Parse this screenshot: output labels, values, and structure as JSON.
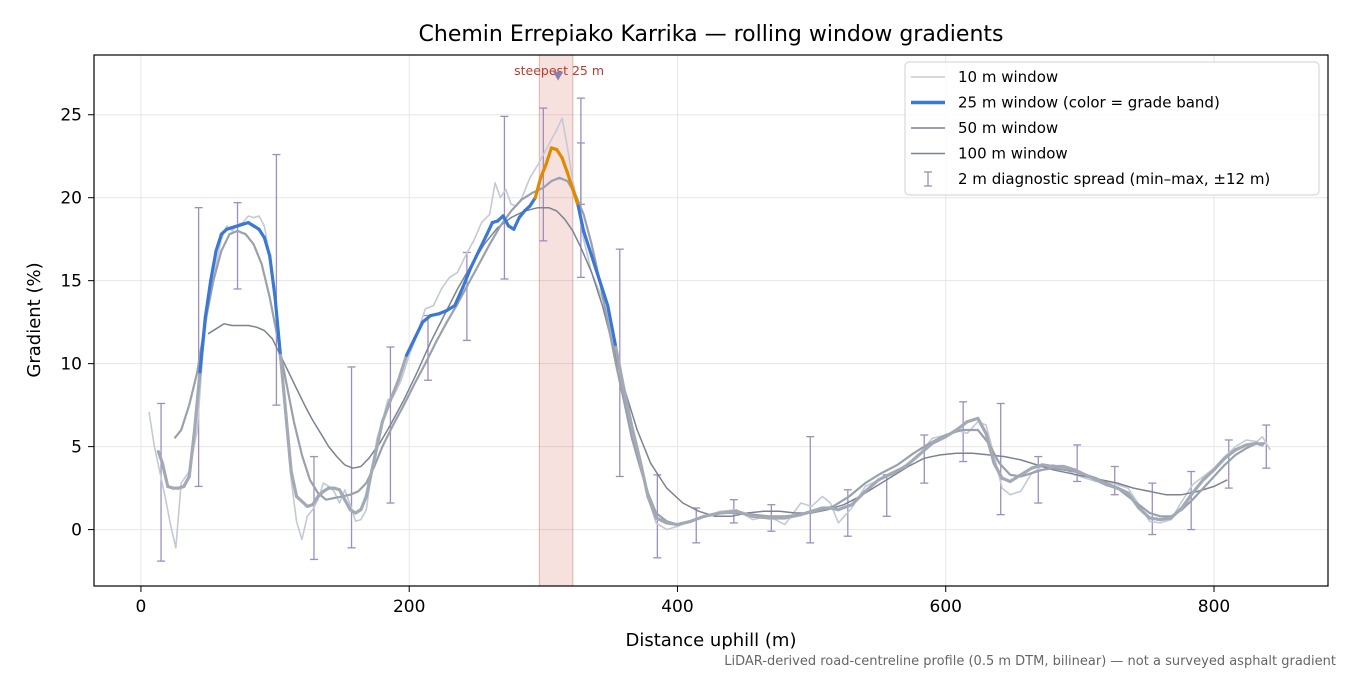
{
  "chart_data": {
    "type": "line",
    "title": "Chemin Errepiako Karrika — rolling window gradients",
    "xlabel": "Distance uphill (m)",
    "ylabel": "Gradient (%)",
    "xlim": [
      -35,
      885
    ],
    "ylim": [
      -3.4,
      28.6
    ],
    "xticks": [
      0,
      200,
      400,
      600,
      800
    ],
    "yticks": [
      0,
      5,
      10,
      15,
      20,
      25
    ],
    "grid": true,
    "legend_position": "top-right",
    "footnote": "LiDAR-derived road-centreline profile (0.5 m DTM, bilinear) — not a surveyed asphalt gradient",
    "annotation": {
      "text": "steepest 25 m",
      "x_range": [
        297,
        322
      ],
      "marker_x": 311,
      "marker_y": 27.3,
      "color": "#c0392b"
    },
    "grade_bands": [
      {
        "min": -100,
        "max": 10,
        "color": "#a3aab6"
      },
      {
        "min": 10,
        "max": 20,
        "color": "#3a78d4"
      },
      {
        "min": 20,
        "max": 100,
        "color": "#e08a00"
      }
    ],
    "series": [
      {
        "name": "10 m window",
        "style": "thin-light",
        "color": "#c3cad5",
        "x": [
          6,
          10,
          14,
          18,
          22,
          26,
          30,
          36,
          42,
          46,
          50,
          56,
          60,
          64,
          68,
          72,
          76,
          80,
          84,
          88,
          92,
          96,
          100,
          104,
          108,
          112,
          116,
          120,
          124,
          128,
          132,
          136,
          140,
          144,
          148,
          152,
          156,
          160,
          164,
          168,
          172,
          176,
          180,
          184,
          188,
          194,
          200,
          206,
          212,
          218,
          224,
          230,
          236,
          242,
          248,
          254,
          260,
          264,
          268,
          272,
          276,
          280,
          284,
          290,
          296,
          302,
          306,
          310,
          314,
          318,
          322,
          326,
          330,
          336,
          342,
          348,
          354,
          360,
          366,
          372,
          378,
          384,
          392,
          400,
          410,
          420,
          432,
          444,
          456,
          468,
          480,
          492,
          500,
          508,
          514,
          520,
          530,
          540,
          550,
          560,
          570,
          580,
          590,
          600,
          608,
          616,
          624,
          630,
          636,
          642,
          648,
          656,
          664,
          672,
          680,
          688,
          696,
          704,
          712,
          720,
          728,
          736,
          744,
          752,
          760,
          768,
          776,
          784,
          792,
          800,
          808,
          816,
          824,
          832,
          836,
          842
        ],
        "y": [
          7.1,
          5.0,
          3.5,
          2.0,
          0.3,
          -1.1,
          2.8,
          3.5,
          6.0,
          10.5,
          13.5,
          16.0,
          17.5,
          18.3,
          18.0,
          18.4,
          18.5,
          18.9,
          18.8,
          18.9,
          18.3,
          16.5,
          14.0,
          10.5,
          6.5,
          3.0,
          0.5,
          -0.6,
          0.8,
          1.2,
          1.8,
          2.8,
          2.6,
          2.3,
          1.6,
          2.4,
          1.5,
          0.5,
          0.6,
          1.2,
          3.5,
          5.5,
          6.5,
          7.8,
          8.0,
          9.0,
          10.5,
          11.8,
          13.3,
          13.5,
          14.5,
          15.2,
          15.5,
          16.5,
          17.4,
          18.5,
          19.0,
          20.9,
          20.0,
          20.5,
          19.6,
          19.5,
          20.0,
          21.2,
          22.0,
          22.9,
          23.5,
          24.1,
          24.8,
          23.0,
          21.0,
          19.5,
          17.5,
          15.5,
          14.3,
          13.0,
          10.5,
          8.5,
          6.0,
          4.2,
          2.0,
          0.4,
          0.0,
          0.2,
          0.5,
          0.8,
          1.1,
          1.2,
          0.6,
          0.8,
          0.3,
          1.6,
          1.4,
          2.0,
          1.6,
          0.4,
          1.3,
          2.6,
          3.0,
          3.3,
          3.9,
          4.5,
          5.5,
          5.7,
          6.0,
          5.8,
          6.5,
          6.3,
          4.5,
          2.5,
          2.1,
          2.3,
          3.4,
          3.8,
          3.9,
          3.7,
          3.3,
          3.1,
          2.9,
          2.9,
          2.7,
          2.5,
          1.5,
          0.5,
          0.4,
          0.6,
          1.7,
          2.7,
          3.2,
          3.7,
          4.4,
          5.0,
          5.4,
          5.3,
          5.6,
          4.8
        ]
      },
      {
        "name": "25 m window (color = grade band)",
        "style": "thick-colored",
        "color": "#3a78d4",
        "x": [
          13,
          16,
          20,
          24,
          28,
          32,
          36,
          40,
          44,
          48,
          52,
          56,
          60,
          64,
          68,
          72,
          76,
          80,
          84,
          88,
          92,
          96,
          100,
          104,
          108,
          112,
          116,
          120,
          124,
          128,
          132,
          136,
          140,
          144,
          148,
          152,
          156,
          160,
          164,
          168,
          172,
          176,
          180,
          186,
          192,
          198,
          204,
          210,
          216,
          222,
          228,
          234,
          240,
          246,
          252,
          258,
          262,
          266,
          270,
          274,
          278,
          282,
          286,
          290,
          294,
          298,
          302,
          306,
          310,
          314,
          318,
          322,
          326,
          330,
          336,
          342,
          348,
          354,
          360,
          366,
          372,
          378,
          384,
          392,
          400,
          410,
          420,
          432,
          444,
          456,
          468,
          480,
          492,
          500,
          508,
          514,
          520,
          530,
          540,
          550,
          560,
          570,
          580,
          590,
          600,
          608,
          616,
          624,
          630,
          636,
          642,
          648,
          656,
          664,
          672,
          680,
          688,
          696,
          704,
          712,
          720,
          728,
          736,
          744,
          752,
          760,
          768,
          776,
          784,
          792,
          800,
          808,
          816,
          824,
          832,
          836
        ],
        "y": [
          4.7,
          4.0,
          2.6,
          2.5,
          2.5,
          2.6,
          3.2,
          6.0,
          9.5,
          12.8,
          15.0,
          16.8,
          17.8,
          18.1,
          18.2,
          18.3,
          18.4,
          18.5,
          18.3,
          18.1,
          17.6,
          16.5,
          14.0,
          10.5,
          7.0,
          3.5,
          2.0,
          1.7,
          1.4,
          1.5,
          2.0,
          2.3,
          2.5,
          2.5,
          2.4,
          1.8,
          1.2,
          1.0,
          1.2,
          2.0,
          3.5,
          5.0,
          6.5,
          7.8,
          9.0,
          10.5,
          11.5,
          12.5,
          12.9,
          13.0,
          13.2,
          13.5,
          14.6,
          15.8,
          16.8,
          17.8,
          18.5,
          18.6,
          18.9,
          18.3,
          18.1,
          18.8,
          19.2,
          19.5,
          20.0,
          21.2,
          22.0,
          23.0,
          22.9,
          22.4,
          21.5,
          20.5,
          19.5,
          18.0,
          16.5,
          15.0,
          13.5,
          11.0,
          8.5,
          6.2,
          4.2,
          2.0,
          0.7,
          0.4,
          0.3,
          0.5,
          0.8,
          1.0,
          1.1,
          0.8,
          0.7,
          0.7,
          0.9,
          1.1,
          1.3,
          1.3,
          1.2,
          1.5,
          2.3,
          3.0,
          3.4,
          3.8,
          4.5,
          5.2,
          5.6,
          6.0,
          6.5,
          6.7,
          5.8,
          4.0,
          3.1,
          2.9,
          3.3,
          3.7,
          3.9,
          3.8,
          3.8,
          3.6,
          3.3,
          3.0,
          2.7,
          2.5,
          2.2,
          1.3,
          0.7,
          0.6,
          0.7,
          1.3,
          2.2,
          3.0,
          3.6,
          4.3,
          4.8,
          5.1,
          5.2,
          5.1
        ]
      },
      {
        "name": "50 m window",
        "style": "medium",
        "color": "#9aa1ad",
        "x": [
          25,
          30,
          36,
          42,
          48,
          54,
          60,
          66,
          72,
          78,
          84,
          90,
          96,
          102,
          108,
          114,
          120,
          126,
          132,
          138,
          144,
          150,
          156,
          162,
          168,
          174,
          180,
          188,
          196,
          204,
          212,
          220,
          228,
          236,
          244,
          252,
          260,
          268,
          276,
          284,
          292,
          300,
          306,
          312,
          318,
          324,
          330,
          336,
          342,
          348,
          354,
          360,
          366,
          372,
          378,
          384,
          392,
          400,
          410,
          420,
          432,
          444,
          456,
          468,
          480,
          492,
          504,
          516,
          528,
          540,
          552,
          564,
          576,
          588,
          600,
          612,
          624,
          632,
          640,
          648,
          656,
          664,
          672,
          680,
          688,
          696,
          704,
          712,
          720,
          728,
          736,
          744,
          752,
          760,
          768,
          776,
          784,
          792,
          800,
          808,
          816,
          824,
          832,
          838
        ],
        "y": [
          5.5,
          6.0,
          7.5,
          9.5,
          12.5,
          15.0,
          16.8,
          17.8,
          18.0,
          17.8,
          17.2,
          16.0,
          14.0,
          11.5,
          9.0,
          6.5,
          4.5,
          3.0,
          2.2,
          1.8,
          1.9,
          2.0,
          2.1,
          2.3,
          2.8,
          3.8,
          5.0,
          6.3,
          7.5,
          8.8,
          10.0,
          11.3,
          12.5,
          13.6,
          14.8,
          16.0,
          17.2,
          18.3,
          19.2,
          19.9,
          20.3,
          20.6,
          21.0,
          21.2,
          21.0,
          20.2,
          19.0,
          17.2,
          15.0,
          12.5,
          10.0,
          7.8,
          5.5,
          3.8,
          2.2,
          1.0,
          0.5,
          0.3,
          0.5,
          0.8,
          1.0,
          1.0,
          0.9,
          0.8,
          0.8,
          0.9,
          1.1,
          1.4,
          2.0,
          2.8,
          3.4,
          3.9,
          4.6,
          5.2,
          5.7,
          6.0,
          6.0,
          5.2,
          4.0,
          3.3,
          3.2,
          3.4,
          3.6,
          3.7,
          3.6,
          3.5,
          3.3,
          3.1,
          2.8,
          2.5,
          2.0,
          1.5,
          1.0,
          0.8,
          0.8,
          1.2,
          1.8,
          2.5,
          3.2,
          3.9,
          4.5,
          4.9,
          5.2,
          5.2
        ]
      },
      {
        "name": "100 m window",
        "style": "thin-dark",
        "color": "#7b8392",
        "x": [
          50,
          56,
          62,
          68,
          74,
          80,
          86,
          92,
          98,
          104,
          110,
          116,
          122,
          128,
          134,
          140,
          146,
          152,
          158,
          164,
          170,
          178,
          186,
          196,
          206,
          216,
          226,
          236,
          246,
          256,
          266,
          276,
          286,
          296,
          304,
          310,
          316,
          322,
          328,
          336,
          344,
          352,
          360,
          370,
          380,
          392,
          404,
          416,
          428,
          440,
          452,
          464,
          476,
          488,
          500,
          512,
          524,
          536,
          548,
          560,
          572,
          584,
          596,
          608,
          620,
          632,
          644,
          656,
          668,
          680,
          692,
          704,
          716,
          728,
          740,
          752,
          764,
          776,
          788,
          800,
          810
        ],
        "y": [
          11.8,
          12.1,
          12.4,
          12.3,
          12.3,
          12.3,
          12.2,
          12.0,
          11.5,
          10.5,
          9.5,
          8.5,
          7.5,
          6.6,
          5.8,
          5.0,
          4.4,
          3.9,
          3.7,
          3.8,
          4.3,
          5.2,
          6.3,
          7.8,
          9.5,
          11.3,
          12.9,
          14.5,
          15.9,
          17.2,
          18.2,
          18.8,
          19.2,
          19.4,
          19.4,
          19.2,
          18.7,
          18.0,
          17.0,
          15.5,
          13.5,
          11.0,
          8.6,
          6.0,
          4.0,
          2.5,
          1.6,
          1.1,
          0.8,
          0.8,
          1.0,
          1.1,
          1.1,
          1.0,
          1.0,
          1.2,
          1.5,
          2.0,
          2.6,
          3.2,
          3.8,
          4.3,
          4.5,
          4.6,
          4.6,
          4.5,
          4.4,
          4.2,
          3.9,
          3.6,
          3.4,
          3.2,
          3.0,
          2.8,
          2.5,
          2.3,
          2.1,
          2.1,
          2.3,
          2.6,
          3.0
        ]
      }
    ],
    "error_bars": {
      "name": "2 m diagnostic spread (min–max, ±12 m)",
      "color": "#9b8fbf",
      "points": [
        {
          "x": 15,
          "min": -1.9,
          "max": 7.6
        },
        {
          "x": 43,
          "min": 2.6,
          "max": 19.4
        },
        {
          "x": 72,
          "min": 14.5,
          "max": 19.7
        },
        {
          "x": 101,
          "min": 7.5,
          "max": 22.6
        },
        {
          "x": 129,
          "min": -1.8,
          "max": 4.4
        },
        {
          "x": 157,
          "min": -1.1,
          "max": 9.8
        },
        {
          "x": 186,
          "min": 1.6,
          "max": 11.0
        },
        {
          "x": 214,
          "min": 9.0,
          "max": 12.9
        },
        {
          "x": 243,
          "min": 11.4,
          "max": 16.7
        },
        {
          "x": 271,
          "min": 15.1,
          "max": 24.9
        },
        {
          "x": 300,
          "min": 17.4,
          "max": 25.4
        },
        {
          "x": 328,
          "min": 19.6,
          "max": 23.3
        },
        {
          "x": 328,
          "min": 15.2,
          "max": 26.0
        },
        {
          "x": 357,
          "min": 3.2,
          "max": 16.9
        },
        {
          "x": 385,
          "min": -1.7,
          "max": 3.3
        },
        {
          "x": 414,
          "min": -0.8,
          "max": 1.3
        },
        {
          "x": 442,
          "min": 0.4,
          "max": 1.8
        },
        {
          "x": 470,
          "min": -0.1,
          "max": 1.5
        },
        {
          "x": 499,
          "min": -0.8,
          "max": 5.6
        },
        {
          "x": 527,
          "min": -0.4,
          "max": 2.4
        },
        {
          "x": 556,
          "min": 0.8,
          "max": 3.3
        },
        {
          "x": 584,
          "min": 2.8,
          "max": 5.7
        },
        {
          "x": 613,
          "min": 4.1,
          "max": 7.7
        },
        {
          "x": 641,
          "min": 0.9,
          "max": 7.6
        },
        {
          "x": 669,
          "min": 1.6,
          "max": 4.4
        },
        {
          "x": 698,
          "min": 2.9,
          "max": 5.1
        },
        {
          "x": 726,
          "min": 2.1,
          "max": 3.8
        },
        {
          "x": 754,
          "min": -0.3,
          "max": 2.8
        },
        {
          "x": 783,
          "min": 0.0,
          "max": 3.5
        },
        {
          "x": 811,
          "min": 2.5,
          "max": 5.4
        },
        {
          "x": 839,
          "min": 3.7,
          "max": 6.3
        }
      ]
    },
    "legend": [
      {
        "label": "10 m window",
        "kind": "line",
        "color": "#c3cad5",
        "width": 1.6
      },
      {
        "label": "25 m window (color = grade band)",
        "kind": "line",
        "color": "#3a78d4",
        "width": 3.5
      },
      {
        "label": "50 m window",
        "kind": "line",
        "color": "#9aa1ad",
        "width": 2
      },
      {
        "label": "100 m window",
        "kind": "line",
        "color": "#7b8392",
        "width": 1.6
      },
      {
        "label": "2 m diagnostic spread (min–max, ±12 m)",
        "kind": "errorbar",
        "color": "#9b8fbf",
        "width": 1.3
      }
    ]
  }
}
